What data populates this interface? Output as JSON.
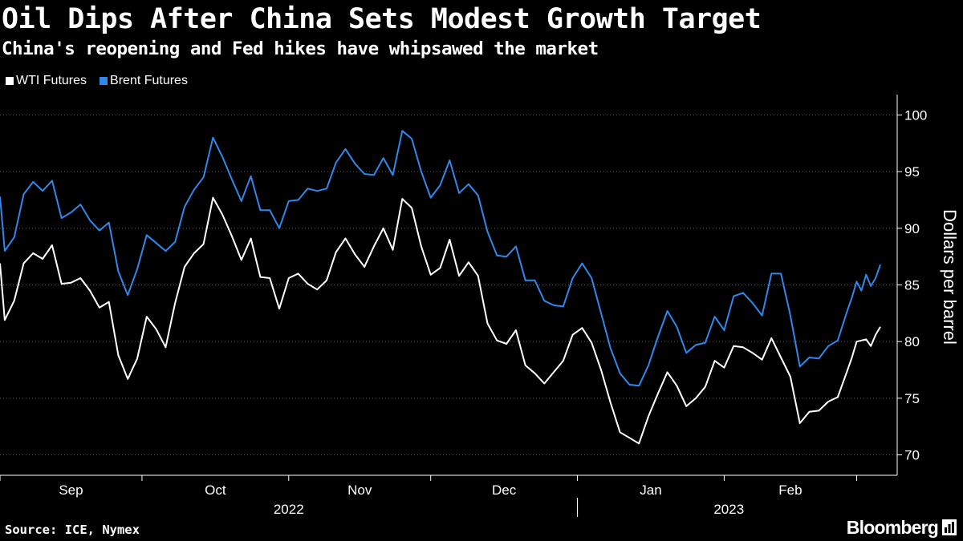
{
  "chart_data": {
    "type": "line",
    "title": "Oil Dips After China Sets Modest Growth Target",
    "subtitle": "China's reopening and Fed hikes have whipsawed the market",
    "ylabel": "Dollars per barrel",
    "xlabel": "",
    "ylim": [
      68.2,
      101.8
    ],
    "yticks": [
      70,
      75,
      80,
      85,
      90,
      95,
      100
    ],
    "grid": true,
    "legend_position": "top-left",
    "months": [
      "Sep",
      "Oct",
      "Nov",
      "Dec",
      "Jan",
      "Feb"
    ],
    "years": [
      "2022",
      "2023"
    ],
    "x_start": "2022-09-01",
    "x_end": "2023-03-06",
    "series": [
      {
        "name": "WTI Futures",
        "color": "#ffffff",
        "values": [
          [
            "2022-09-01",
            86.9
          ],
          [
            "2022-09-02",
            81.9
          ],
          [
            "2022-09-04",
            83.6
          ],
          [
            "2022-09-06",
            86.9
          ],
          [
            "2022-09-08",
            87.8
          ],
          [
            "2022-09-10",
            87.3
          ],
          [
            "2022-09-12",
            88.5
          ],
          [
            "2022-09-14",
            85.1
          ],
          [
            "2022-09-16",
            85.2
          ],
          [
            "2022-09-18",
            85.6
          ],
          [
            "2022-09-20",
            84.5
          ],
          [
            "2022-09-22",
            83.0
          ],
          [
            "2022-09-24",
            83.5
          ],
          [
            "2022-09-26",
            78.8
          ],
          [
            "2022-09-28",
            76.7
          ],
          [
            "2022-09-30",
            78.5
          ],
          [
            "2022-10-02",
            82.2
          ],
          [
            "2022-10-04",
            81.1
          ],
          [
            "2022-10-06",
            79.5
          ],
          [
            "2022-10-08",
            83.4
          ],
          [
            "2022-10-10",
            86.6
          ],
          [
            "2022-10-12",
            87.8
          ],
          [
            "2022-10-14",
            88.6
          ],
          [
            "2022-10-16",
            92.7
          ],
          [
            "2022-10-18",
            91.2
          ],
          [
            "2022-10-20",
            89.3
          ],
          [
            "2022-10-22",
            87.2
          ],
          [
            "2022-10-24",
            89.1
          ],
          [
            "2022-10-26",
            85.7
          ],
          [
            "2022-10-28",
            85.6
          ],
          [
            "2022-10-30",
            82.9
          ],
          [
            "2022-11-01",
            85.6
          ],
          [
            "2022-11-03",
            86.0
          ],
          [
            "2022-11-05",
            85.1
          ],
          [
            "2022-11-07",
            84.6
          ],
          [
            "2022-11-09",
            85.4
          ],
          [
            "2022-11-11",
            87.9
          ],
          [
            "2022-11-13",
            89.1
          ],
          [
            "2022-11-15",
            87.7
          ],
          [
            "2022-11-17",
            86.6
          ],
          [
            "2022-11-19",
            88.4
          ],
          [
            "2022-11-21",
            90.0
          ],
          [
            "2022-11-23",
            88.1
          ],
          [
            "2022-11-25",
            92.6
          ],
          [
            "2022-11-27",
            91.8
          ],
          [
            "2022-11-29",
            88.4
          ],
          [
            "2022-12-01",
            85.9
          ],
          [
            "2022-12-03",
            86.5
          ],
          [
            "2022-12-05",
            89.0
          ],
          [
            "2022-12-07",
            85.8
          ],
          [
            "2022-12-09",
            87.0
          ],
          [
            "2022-12-11",
            85.8
          ],
          [
            "2022-12-13",
            81.6
          ],
          [
            "2022-12-15",
            80.1
          ],
          [
            "2022-12-17",
            79.8
          ],
          [
            "2022-12-19",
            81.0
          ],
          [
            "2022-12-21",
            77.9
          ],
          [
            "2022-12-23",
            77.2
          ],
          [
            "2022-12-25",
            76.3
          ],
          [
            "2022-12-27",
            77.3
          ],
          [
            "2022-12-29",
            78.3
          ],
          [
            "2022-12-31",
            80.6
          ],
          [
            "2023-01-02",
            81.2
          ],
          [
            "2023-01-04",
            79.9
          ],
          [
            "2023-01-06",
            77.5
          ],
          [
            "2023-01-08",
            74.6
          ],
          [
            "2023-01-10",
            72.0
          ],
          [
            "2023-01-12",
            71.5
          ],
          [
            "2023-01-14",
            71.0
          ],
          [
            "2023-01-16",
            73.4
          ],
          [
            "2023-01-18",
            75.4
          ],
          [
            "2023-01-20",
            77.3
          ],
          [
            "2023-01-22",
            76.1
          ],
          [
            "2023-01-24",
            74.3
          ],
          [
            "2023-01-26",
            75.0
          ],
          [
            "2023-01-28",
            76.0
          ],
          [
            "2023-01-30",
            78.3
          ],
          [
            "2023-02-01",
            77.7
          ],
          [
            "2023-02-03",
            79.6
          ],
          [
            "2023-02-05",
            79.5
          ],
          [
            "2023-02-07",
            79.0
          ],
          [
            "2023-02-09",
            78.4
          ],
          [
            "2023-02-11",
            80.3
          ],
          [
            "2023-02-13",
            78.6
          ],
          [
            "2023-02-15",
            76.9
          ],
          [
            "2023-02-17",
            72.8
          ],
          [
            "2023-02-19",
            73.8
          ],
          [
            "2023-02-21",
            73.9
          ],
          [
            "2023-02-23",
            74.7
          ],
          [
            "2023-02-25",
            75.1
          ],
          [
            "2023-02-27",
            77.4
          ],
          [
            "2023-02-28",
            78.6
          ],
          [
            "2023-03-01",
            80.0
          ],
          [
            "2023-03-02",
            80.1
          ],
          [
            "2023-03-03",
            80.2
          ],
          [
            "2023-03-04",
            79.6
          ],
          [
            "2023-03-05",
            80.6
          ],
          [
            "2023-03-06",
            81.3
          ]
        ]
      },
      {
        "name": "Brent Futures",
        "color": "#2f88ea",
        "values": [
          [
            "2022-09-01",
            92.8
          ],
          [
            "2022-09-02",
            88.0
          ],
          [
            "2022-09-04",
            89.2
          ],
          [
            "2022-09-06",
            93.0
          ],
          [
            "2022-09-08",
            94.1
          ],
          [
            "2022-09-10",
            93.3
          ],
          [
            "2022-09-12",
            94.2
          ],
          [
            "2022-09-14",
            90.9
          ],
          [
            "2022-09-16",
            91.4
          ],
          [
            "2022-09-18",
            92.1
          ],
          [
            "2022-09-20",
            90.7
          ],
          [
            "2022-09-22",
            89.8
          ],
          [
            "2022-09-24",
            90.5
          ],
          [
            "2022-09-26",
            86.2
          ],
          [
            "2022-09-28",
            84.1
          ],
          [
            "2022-09-30",
            86.4
          ],
          [
            "2022-10-02",
            89.4
          ],
          [
            "2022-10-04",
            88.7
          ],
          [
            "2022-10-06",
            88.0
          ],
          [
            "2022-10-08",
            88.8
          ],
          [
            "2022-10-10",
            91.9
          ],
          [
            "2022-10-12",
            93.4
          ],
          [
            "2022-10-14",
            94.5
          ],
          [
            "2022-10-16",
            98.0
          ],
          [
            "2022-10-18",
            96.3
          ],
          [
            "2022-10-20",
            94.3
          ],
          [
            "2022-10-22",
            92.4
          ],
          [
            "2022-10-24",
            94.6
          ],
          [
            "2022-10-26",
            91.6
          ],
          [
            "2022-10-28",
            91.6
          ],
          [
            "2022-10-30",
            90.0
          ],
          [
            "2022-11-01",
            92.4
          ],
          [
            "2022-11-03",
            92.5
          ],
          [
            "2022-11-05",
            93.5
          ],
          [
            "2022-11-07",
            93.3
          ],
          [
            "2022-11-09",
            93.5
          ],
          [
            "2022-11-11",
            95.8
          ],
          [
            "2022-11-13",
            97.0
          ],
          [
            "2022-11-15",
            95.7
          ],
          [
            "2022-11-17",
            94.8
          ],
          [
            "2022-11-19",
            94.7
          ],
          [
            "2022-11-21",
            96.2
          ],
          [
            "2022-11-23",
            94.7
          ],
          [
            "2022-11-25",
            98.6
          ],
          [
            "2022-11-27",
            97.9
          ],
          [
            "2022-11-29",
            95.0
          ],
          [
            "2022-12-01",
            92.7
          ],
          [
            "2022-12-03",
            93.8
          ],
          [
            "2022-12-05",
            96.0
          ],
          [
            "2022-12-07",
            93.1
          ],
          [
            "2022-12-09",
            93.9
          ],
          [
            "2022-12-11",
            92.9
          ],
          [
            "2022-12-13",
            89.7
          ],
          [
            "2022-12-15",
            87.6
          ],
          [
            "2022-12-17",
            87.5
          ],
          [
            "2022-12-19",
            88.4
          ],
          [
            "2022-12-21",
            85.4
          ],
          [
            "2022-12-23",
            85.4
          ],
          [
            "2022-12-25",
            83.6
          ],
          [
            "2022-12-27",
            83.2
          ],
          [
            "2022-12-29",
            83.1
          ],
          [
            "2022-12-31",
            85.6
          ],
          [
            "2023-01-02",
            86.9
          ],
          [
            "2023-01-04",
            85.6
          ],
          [
            "2023-01-06",
            82.5
          ],
          [
            "2023-01-08",
            79.4
          ],
          [
            "2023-01-10",
            77.2
          ],
          [
            "2023-01-12",
            76.2
          ],
          [
            "2023-01-14",
            76.1
          ],
          [
            "2023-01-16",
            77.9
          ],
          [
            "2023-01-18",
            80.4
          ],
          [
            "2023-01-20",
            82.7
          ],
          [
            "2023-01-22",
            81.3
          ],
          [
            "2023-01-24",
            79.0
          ],
          [
            "2023-01-26",
            79.7
          ],
          [
            "2023-01-28",
            79.9
          ],
          [
            "2023-01-30",
            82.2
          ],
          [
            "2023-02-01",
            81.0
          ],
          [
            "2023-02-03",
            84.0
          ],
          [
            "2023-02-05",
            84.3
          ],
          [
            "2023-02-07",
            83.4
          ],
          [
            "2023-02-09",
            82.3
          ],
          [
            "2023-02-11",
            86.0
          ],
          [
            "2023-02-13",
            86.0
          ],
          [
            "2023-02-15",
            82.3
          ],
          [
            "2023-02-17",
            77.8
          ],
          [
            "2023-02-19",
            78.6
          ],
          [
            "2023-02-21",
            78.5
          ],
          [
            "2023-02-23",
            79.6
          ],
          [
            "2023-02-25",
            80.1
          ],
          [
            "2023-02-27",
            82.7
          ],
          [
            "2023-02-28",
            83.9
          ],
          [
            "2023-03-01",
            85.3
          ],
          [
            "2023-03-02",
            84.5
          ],
          [
            "2023-03-03",
            85.9
          ],
          [
            "2023-03-04",
            84.9
          ],
          [
            "2023-03-05",
            85.6
          ],
          [
            "2023-03-06",
            86.8
          ]
        ]
      }
    ]
  },
  "source": "Source: ICE, Nymex",
  "brand": "Bloomberg"
}
